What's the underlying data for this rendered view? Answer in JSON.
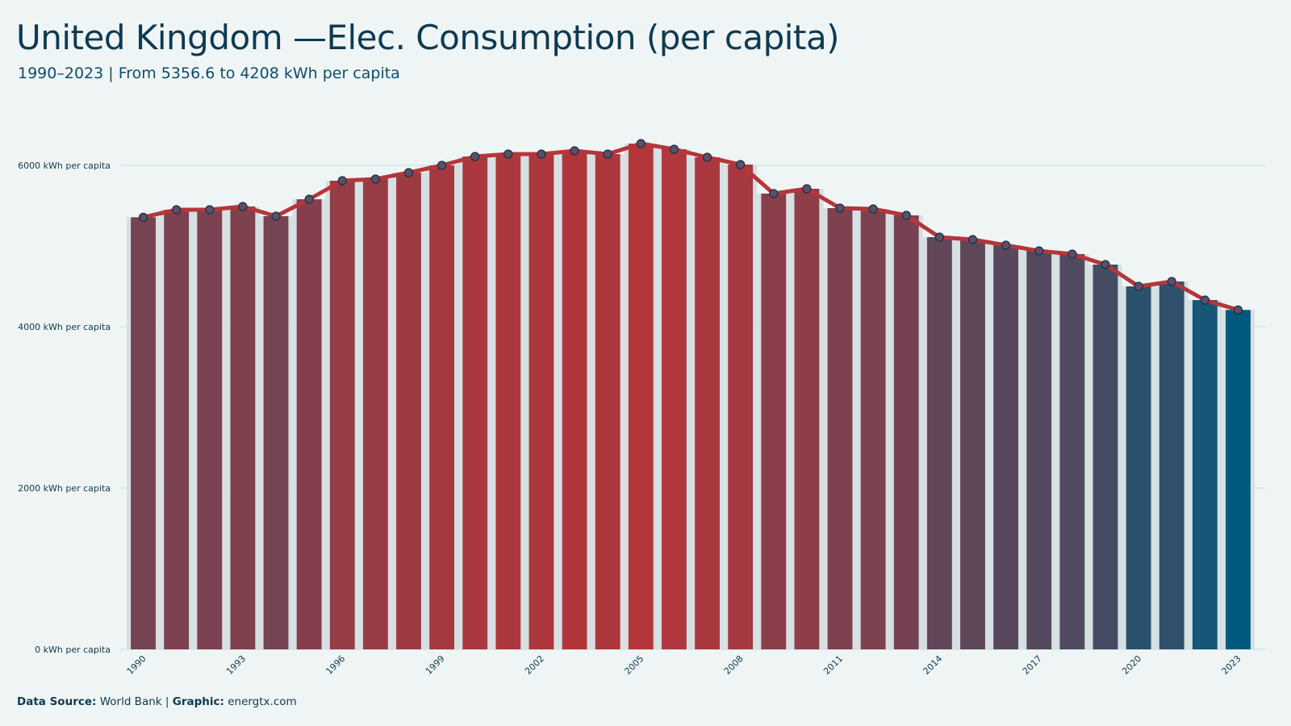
{
  "header": {
    "title": "United Kingdom —Elec. Consumption (per capita)",
    "subtitle": "1990–2023 | From 5356.6  to 4208 kWh per capita"
  },
  "footer": {
    "source_label": "Data Source:",
    "source_value": "World Bank",
    "separator": "|",
    "graphic_label": "Graphic:",
    "graphic_value": "energtx.com"
  },
  "colors": {
    "background": "#eff5f5",
    "line": "#b5363a",
    "marker_stroke": "#1b2e44",
    "marker_fill": "#5a5068",
    "high_color": "#b5363a",
    "low_color": "#005a7e",
    "grid": "#cfdadd",
    "bar_gap_fill": "#d6e0e2"
  },
  "chart_data": {
    "type": "bar",
    "title": "United Kingdom —Elec. Consumption (per capita)",
    "subtitle": "1990–2023 | From 5356.6  to 4208 kWh per capita",
    "unit_suffix": " kWh per capita",
    "overlay_line": true,
    "ylim": [
      0,
      6000
    ],
    "yticks": [
      0,
      2000,
      4000,
      6000
    ],
    "ytick_labels": [
      "0 kWh per capita",
      "2000 kWh per capita",
      "4000 kWh per capita",
      "6000 kWh per capita"
    ],
    "categories": [
      "1990",
      "1991",
      "1992",
      "1993",
      "1994",
      "1995",
      "1996",
      "1997",
      "1998",
      "1999",
      "2000",
      "2001",
      "2002",
      "2003",
      "2004",
      "2005",
      "2006",
      "2007",
      "2008",
      "2009",
      "2010",
      "2011",
      "2012",
      "2013",
      "2014",
      "2015",
      "2016",
      "2017",
      "2018",
      "2019",
      "2020",
      "2021",
      "2022",
      "2023"
    ],
    "xtick_labels": [
      "1990",
      "1993",
      "1996",
      "1999",
      "2002",
      "2005",
      "2008",
      "2011",
      "2014",
      "2017",
      "2020",
      "2023"
    ],
    "values": [
      5356.6,
      5450,
      5450,
      5490,
      5370,
      5580,
      5810,
      5830,
      5910,
      6000,
      6110,
      6140,
      6140,
      6180,
      6140,
      6270,
      6200,
      6100,
      6010,
      5650,
      5710,
      5470,
      5460,
      5380,
      5110,
      5080,
      5010,
      4940,
      4900,
      4770,
      4500,
      4560,
      4330,
      4208
    ],
    "grid": true,
    "legend": "none"
  }
}
